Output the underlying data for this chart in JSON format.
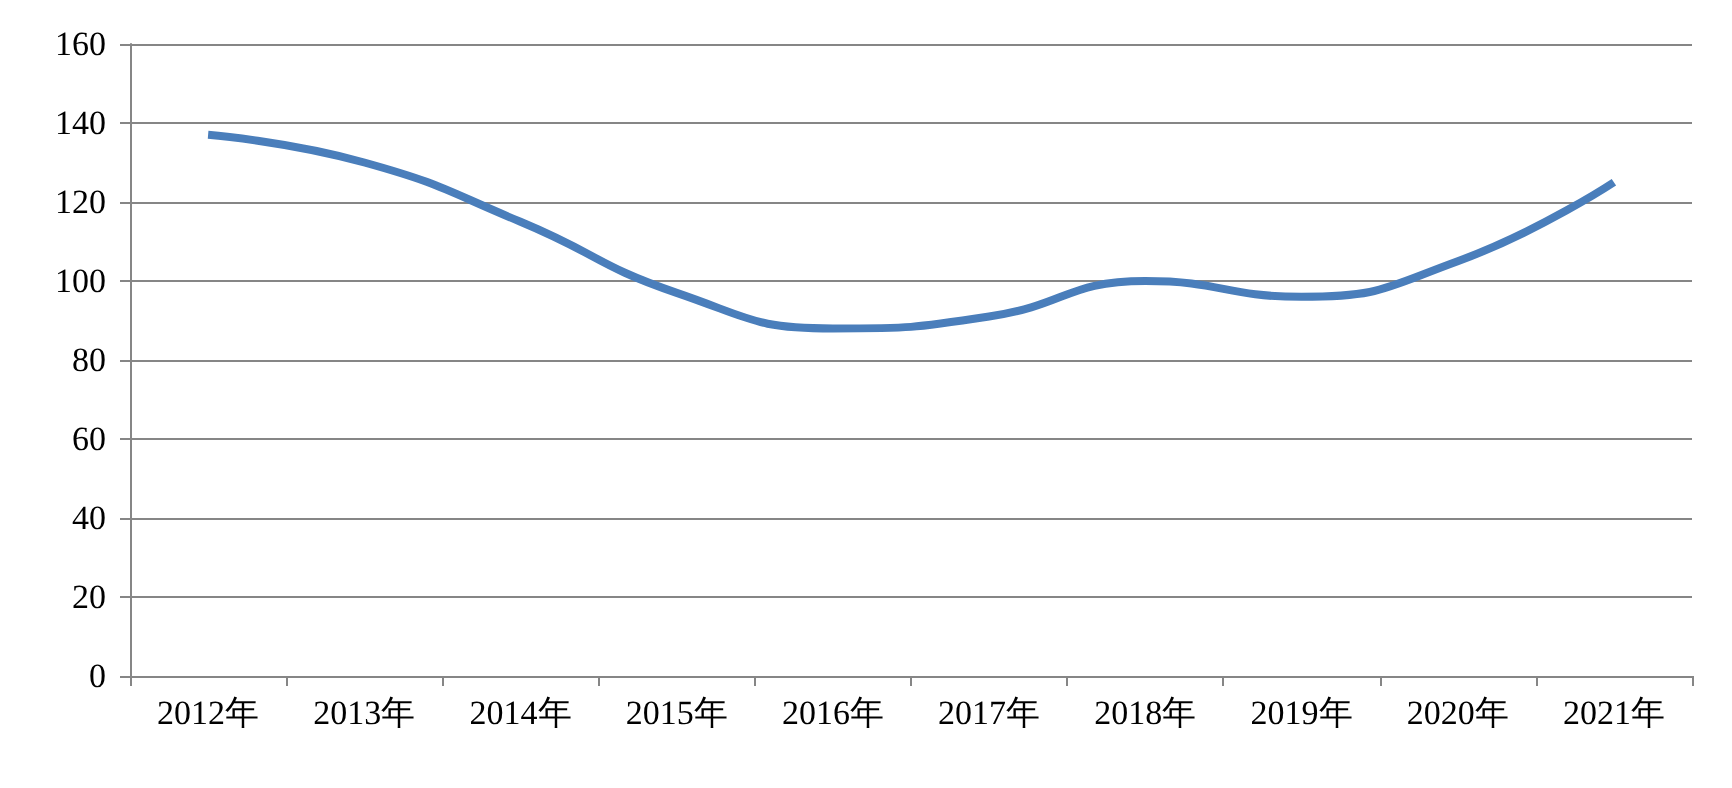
{
  "chart_data": {
    "type": "line",
    "categories": [
      "2012年",
      "2013年",
      "2014年",
      "2015年",
      "2016年",
      "2017年",
      "2018年",
      "2019年",
      "2020年",
      "2021年"
    ],
    "series": [
      {
        "color": "#4a7ebb",
        "values": [
          137,
          130,
          115,
          97,
          88,
          91,
          100,
          96,
          105,
          125
        ]
      }
    ],
    "ylim": [
      0,
      160
    ],
    "yticks": [
      0,
      20,
      40,
      60,
      80,
      100,
      120,
      140,
      160
    ],
    "grid": "y",
    "marker": "none",
    "line_style": "solid"
  }
}
